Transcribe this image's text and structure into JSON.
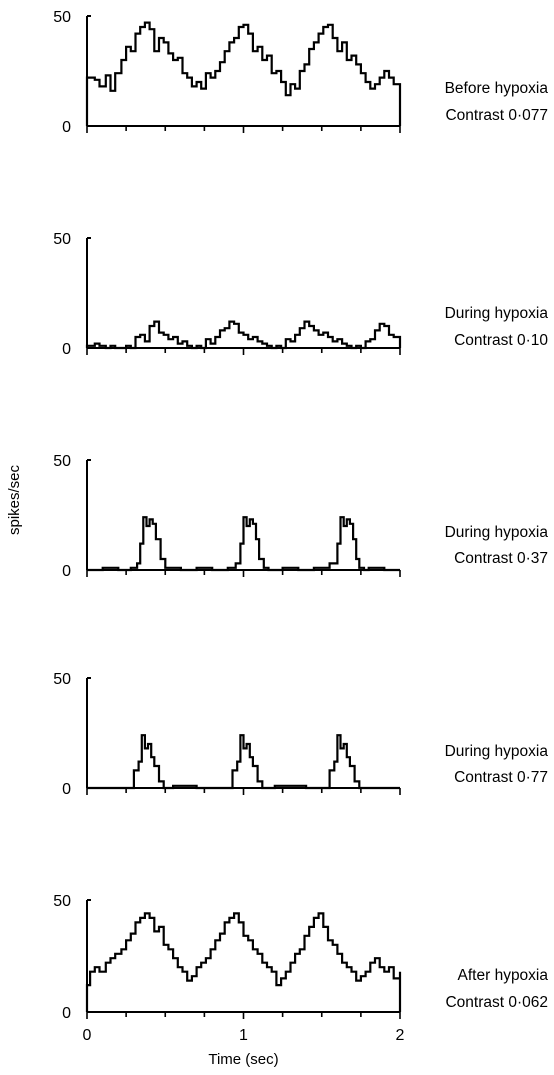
{
  "chart_data": [
    {
      "type": "line",
      "condition": "Before hypoxia",
      "contrast": "Contrast 0·077",
      "ylim": [
        0,
        50
      ],
      "yticks": [
        "0",
        "50"
      ],
      "xlim": [
        0,
        2
      ],
      "series": [
        {
          "x": [
            0,
            0.05,
            0.08,
            0.12,
            0.15,
            0.18,
            0.22,
            0.25,
            0.28,
            0.31,
            0.34,
            0.37,
            0.4,
            0.43,
            0.46,
            0.49,
            0.52,
            0.55,
            0.58,
            0.61,
            0.64,
            0.67,
            0.7,
            0.73,
            0.76,
            0.79,
            0.82,
            0.85,
            0.88,
            0.91,
            0.94,
            0.97,
            1.0,
            1.03,
            1.06,
            1.09,
            1.12,
            1.15,
            1.18,
            1.21,
            1.24,
            1.27,
            1.3,
            1.33,
            1.36,
            1.39,
            1.42,
            1.45,
            1.48,
            1.51,
            1.54,
            1.57,
            1.6,
            1.63,
            1.66,
            1.69,
            1.72,
            1.75,
            1.78,
            1.81,
            1.84,
            1.87,
            1.9,
            1.93,
            1.96,
            2.0
          ],
          "y": [
            22,
            21,
            18,
            23,
            16,
            24,
            30,
            36,
            34,
            42,
            45,
            47,
            44,
            34,
            40,
            38,
            33,
            30,
            31,
            24,
            22,
            18,
            20,
            17,
            24,
            22,
            25,
            29,
            34,
            38,
            40,
            45,
            46,
            42,
            34,
            36,
            30,
            32,
            24,
            25,
            20,
            14,
            19,
            17,
            25,
            28,
            35,
            38,
            42,
            45,
            46,
            40,
            34,
            38,
            30,
            32,
            28,
            24,
            20,
            17,
            19,
            22,
            25,
            22,
            19,
            8
          ]
        }
      ]
    },
    {
      "type": "line",
      "condition": "During hypoxia",
      "contrast": "Contrast 0·10",
      "ylim": [
        0,
        50
      ],
      "yticks": [
        "0",
        "50"
      ],
      "xlim": [
        0,
        2
      ],
      "series": [
        {
          "x": [
            0,
            0.05,
            0.08,
            0.12,
            0.15,
            0.18,
            0.22,
            0.25,
            0.28,
            0.31,
            0.34,
            0.37,
            0.4,
            0.43,
            0.46,
            0.49,
            0.52,
            0.55,
            0.58,
            0.61,
            0.64,
            0.67,
            0.7,
            0.73,
            0.76,
            0.79,
            0.82,
            0.85,
            0.88,
            0.91,
            0.94,
            0.97,
            1.0,
            1.03,
            1.06,
            1.09,
            1.12,
            1.15,
            1.18,
            1.21,
            1.24,
            1.27,
            1.3,
            1.33,
            1.36,
            1.39,
            1.42,
            1.45,
            1.48,
            1.51,
            1.54,
            1.57,
            1.6,
            1.63,
            1.66,
            1.69,
            1.72,
            1.75,
            1.78,
            1.81,
            1.84,
            1.87,
            1.9,
            1.93,
            1.96,
            2.0
          ],
          "y": [
            1,
            2,
            1,
            0,
            1,
            0,
            0,
            1,
            0,
            5,
            6,
            3,
            10,
            12,
            7,
            6,
            4,
            5,
            2,
            3,
            1,
            0,
            1,
            0,
            4,
            2,
            5,
            8,
            9,
            12,
            11,
            7,
            6,
            4,
            5,
            3,
            2,
            1,
            0,
            1,
            0,
            4,
            3,
            6,
            9,
            12,
            10,
            8,
            6,
            7,
            5,
            3,
            4,
            2,
            1,
            0,
            1,
            0,
            3,
            4,
            8,
            11,
            10,
            6,
            5,
            1
          ]
        }
      ]
    },
    {
      "type": "line",
      "condition": "During hypoxia",
      "contrast": "Contrast 0·37",
      "ylim": [
        0,
        50
      ],
      "yticks": [
        "0",
        "50"
      ],
      "xlim": [
        0,
        2
      ],
      "series": [
        {
          "x": [
            0,
            0.1,
            0.2,
            0.28,
            0.32,
            0.34,
            0.36,
            0.38,
            0.4,
            0.42,
            0.44,
            0.47,
            0.5,
            0.6,
            0.7,
            0.8,
            0.9,
            0.95,
            0.98,
            1.0,
            1.02,
            1.04,
            1.06,
            1.08,
            1.1,
            1.13,
            1.16,
            1.25,
            1.35,
            1.45,
            1.55,
            1.6,
            1.62,
            1.64,
            1.66,
            1.68,
            1.7,
            1.72,
            1.74,
            1.77,
            1.8,
            1.9,
            2.0
          ],
          "y": [
            0,
            1,
            0,
            1,
            3,
            12,
            24,
            20,
            23,
            21,
            14,
            5,
            1,
            0,
            1,
            0,
            1,
            3,
            12,
            24,
            20,
            23,
            21,
            14,
            5,
            1,
            0,
            1,
            0,
            1,
            3,
            12,
            24,
            20,
            23,
            21,
            14,
            5,
            1,
            0,
            1,
            0,
            0
          ]
        }
      ]
    },
    {
      "type": "line",
      "condition": "During hypoxia",
      "contrast": "Contrast 0·77",
      "ylim": [
        0,
        50
      ],
      "yticks": [
        "0",
        "50"
      ],
      "xlim": [
        0,
        2
      ],
      "series": [
        {
          "x": [
            0,
            0.1,
            0.2,
            0.28,
            0.3,
            0.33,
            0.35,
            0.37,
            0.39,
            0.41,
            0.43,
            0.46,
            0.49,
            0.55,
            0.7,
            0.85,
            0.9,
            0.93,
            0.96,
            0.98,
            1.0,
            1.02,
            1.04,
            1.06,
            1.09,
            1.12,
            1.2,
            1.4,
            1.52,
            1.55,
            1.58,
            1.6,
            1.62,
            1.64,
            1.66,
            1.68,
            1.71,
            1.74,
            1.8,
            2.0
          ],
          "y": [
            0,
            0,
            0,
            0,
            8,
            12,
            24,
            18,
            20,
            14,
            10,
            3,
            0,
            1,
            0,
            0,
            0,
            8,
            12,
            24,
            18,
            20,
            14,
            10,
            3,
            0,
            1,
            0,
            0,
            8,
            12,
            24,
            18,
            20,
            14,
            10,
            3,
            0,
            0,
            0
          ]
        }
      ]
    },
    {
      "type": "line",
      "condition": "After hypoxia",
      "contrast": "Contrast 0·062",
      "ylim": [
        0,
        50
      ],
      "yticks": [
        "0",
        "50"
      ],
      "xticks": [
        "0",
        "1",
        "2"
      ],
      "xlim": [
        0,
        2
      ],
      "xlabel": "Time (sec)",
      "series": [
        {
          "x": [
            0,
            0.02,
            0.05,
            0.08,
            0.12,
            0.15,
            0.18,
            0.22,
            0.25,
            0.28,
            0.31,
            0.34,
            0.37,
            0.4,
            0.43,
            0.46,
            0.49,
            0.52,
            0.55,
            0.58,
            0.61,
            0.64,
            0.67,
            0.7,
            0.73,
            0.76,
            0.79,
            0.82,
            0.85,
            0.88,
            0.91,
            0.94,
            0.97,
            1.0,
            1.03,
            1.06,
            1.09,
            1.12,
            1.15,
            1.18,
            1.21,
            1.24,
            1.27,
            1.3,
            1.33,
            1.36,
            1.39,
            1.42,
            1.45,
            1.48,
            1.51,
            1.54,
            1.57,
            1.6,
            1.63,
            1.66,
            1.69,
            1.72,
            1.75,
            1.78,
            1.81,
            1.84,
            1.87,
            1.9,
            1.93,
            1.96,
            2.0
          ],
          "y": [
            12,
            18,
            20,
            18,
            22,
            24,
            26,
            28,
            32,
            35,
            40,
            42,
            44,
            42,
            36,
            38,
            30,
            28,
            24,
            20,
            18,
            14,
            16,
            20,
            22,
            24,
            28,
            32,
            35,
            40,
            42,
            44,
            40,
            34,
            32,
            28,
            26,
            22,
            20,
            18,
            12,
            15,
            18,
            22,
            26,
            28,
            34,
            38,
            42,
            44,
            38,
            32,
            30,
            26,
            22,
            20,
            18,
            14,
            16,
            18,
            22,
            24,
            20,
            18,
            20,
            15,
            18
          ]
        }
      ]
    }
  ],
  "y_axis_title": "spikes/sec"
}
